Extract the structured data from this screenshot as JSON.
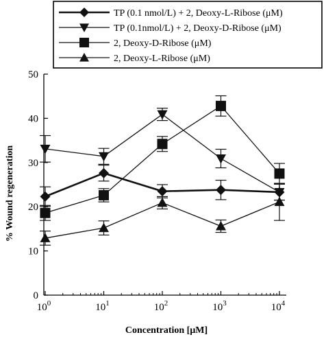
{
  "chart_data": {
    "type": "line",
    "xscale": "log10",
    "x": [
      1,
      10,
      100,
      1000,
      10000
    ],
    "x_ticks": [
      {
        "base": "10",
        "exp": "0"
      },
      {
        "base": "10",
        "exp": "1"
      },
      {
        "base": "10",
        "exp": "2"
      },
      {
        "base": "10",
        "exp": "3"
      },
      {
        "base": "10",
        "exp": "4"
      }
    ],
    "xlabel": "Concentration [μM]",
    "ylabel": "% Wound regeneration",
    "ylim": [
      0,
      50
    ],
    "y_ticks": [
      0,
      10,
      20,
      30,
      40,
      50
    ],
    "grid": false,
    "legend_position": "top",
    "series": [
      {
        "name": "TP (0.1 nmol/L) + 2, Deoxy-L-Ribose (μM)",
        "marker": "diamond",
        "values": [
          22.3,
          27.6,
          23.5,
          23.8,
          23.3
        ],
        "errors": [
          2.2,
          1.8,
          1.5,
          2.2,
          1.8
        ]
      },
      {
        "name": "TP (0.1nmol/L) + 2, Deoxy-D-Ribose (μM)",
        "marker": "triangle-down",
        "values": [
          33.1,
          31.4,
          40.9,
          30.9,
          23.3
        ],
        "errors": [
          3.0,
          1.8,
          1.4,
          2.1,
          1.8
        ]
      },
      {
        "name": "2, Deoxy-D-Ribose (μM)",
        "marker": "square",
        "values": [
          18.6,
          22.6,
          34.2,
          42.8,
          27.5
        ],
        "errors": [
          1.7,
          1.5,
          1.7,
          2.3,
          2.3
        ]
      },
      {
        "name": "2, Deoxy-L-Ribose (μM)",
        "marker": "triangle-up",
        "values": [
          12.9,
          15.2,
          20.9,
          15.6,
          21.1
        ],
        "errors": [
          1.6,
          1.6,
          1.4,
          1.4,
          4.2
        ]
      }
    ]
  }
}
